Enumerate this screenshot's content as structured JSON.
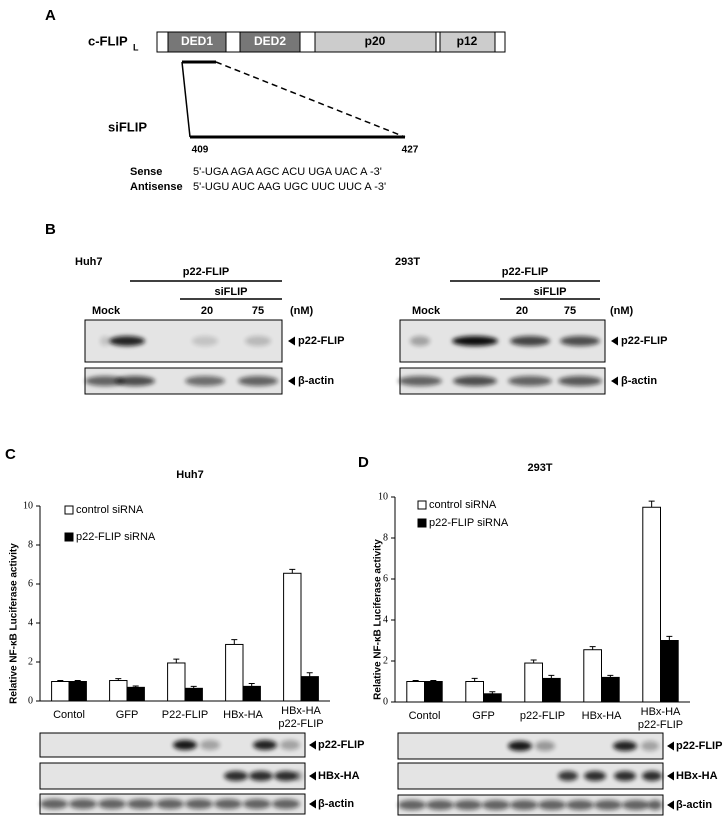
{
  "panel_a": {
    "label": "A",
    "protein": "c-FLIP",
    "protein_subscript": "L",
    "domains": [
      "DED1",
      "DED2",
      "p20",
      "p12"
    ],
    "sirna": "siFLIP",
    "start": 409,
    "end": 427,
    "sense_label": "Sense",
    "sense": "5'-UGA AGA AGC ACU UGA UAC A -3'",
    "antisense_label": "Antisense",
    "antisense": "5'-UGU AUC AAG UGC UUC UUC A -3'"
  },
  "panel_b": {
    "label": "B",
    "blots": [
      {
        "cell_line": "Huh7",
        "treatment": "p22-FLIP",
        "sirna": "siFLIP",
        "mock": "Mock",
        "doses": [
          20,
          75
        ],
        "unit": "(nM)",
        "rows": [
          "p22-FLIP",
          "β-actin"
        ]
      },
      {
        "cell_line": "293T",
        "treatment": "p22-FLIP",
        "sirna": "siFLIP",
        "mock": "Mock",
        "doses": [
          20,
          75
        ],
        "unit": "(nM)",
        "rows": [
          "p22-FLIP",
          "β-actin"
        ]
      }
    ]
  },
  "chart_data": [
    {
      "panel_label": "C",
      "type": "bar",
      "title": "Huh7",
      "ylabel": "Relative NF-κB Luciferase activity",
      "categories": [
        "Contol",
        "GFP",
        "P22-FLIP",
        "HBx-HA",
        [
          "HBx-HA",
          "p22-FLIP"
        ]
      ],
      "series": [
        {
          "name": "control siRNA",
          "color": "#ffffff",
          "values": [
            1.0,
            1.05,
            1.95,
            2.9,
            6.55
          ],
          "errors": [
            0.05,
            0.1,
            0.2,
            0.25,
            0.2
          ]
        },
        {
          "name": "p22-FLIP siRNA",
          "color": "#000000",
          "values": [
            1.0,
            0.7,
            0.65,
            0.75,
            1.25
          ],
          "errors": [
            0.05,
            0.07,
            0.1,
            0.15,
            0.2
          ]
        }
      ],
      "edgecolor": "#000000",
      "ylim": [
        0,
        10
      ],
      "yticks": [
        0,
        2,
        4,
        6,
        8,
        10
      ],
      "legend": "upper left",
      "blot_rows": [
        "p22-FLIP",
        "HBx-HA",
        "β-actin"
      ]
    },
    {
      "panel_label": "D",
      "type": "bar",
      "title": "293T",
      "ylabel": "Relative NF-κB Luciferase activity",
      "categories": [
        "Contol",
        "GFP",
        "p22-FLIP",
        "HBx-HA",
        [
          "HBx-HA",
          "p22-FLIP"
        ]
      ],
      "series": [
        {
          "name": "control siRNA",
          "color": "#ffffff",
          "values": [
            1.0,
            1.0,
            1.9,
            2.55,
            9.5
          ],
          "errors": [
            0.05,
            0.15,
            0.15,
            0.15,
            0.3
          ]
        },
        {
          "name": "p22-FLIP siRNA",
          "color": "#000000",
          "values": [
            1.0,
            0.4,
            1.15,
            1.2,
            3.0
          ],
          "errors": [
            0.05,
            0.1,
            0.15,
            0.1,
            0.2
          ]
        }
      ],
      "edgecolor": "#000000",
      "ylim": [
        0,
        10
      ],
      "yticks": [
        0,
        2,
        4,
        6,
        8,
        10
      ],
      "legend": "upper left",
      "blot_rows": [
        "p22-FLIP",
        "HBx-HA",
        "β-actin"
      ]
    }
  ]
}
